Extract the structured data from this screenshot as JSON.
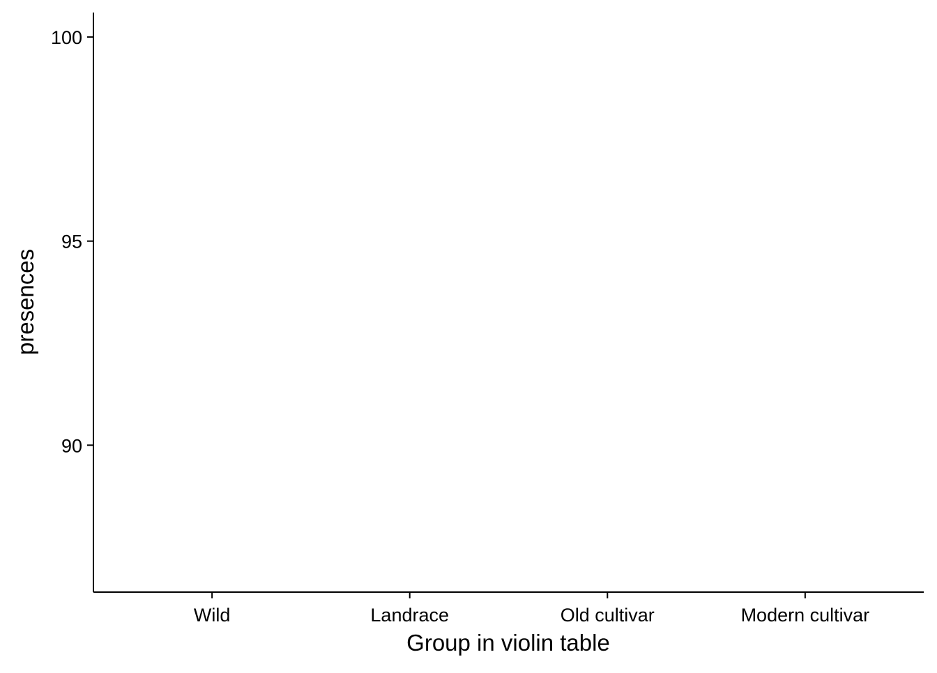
{
  "chart_data": {
    "type": "violin",
    "title": "",
    "xlabel": "Group in violin table",
    "ylabel": "presences",
    "categories": [
      "Wild",
      "Landrace",
      "Old cultivar",
      "Modern cultivar"
    ],
    "ylim": [
      86.4,
      100.6
    ],
    "yticks": [
      90,
      95,
      100
    ],
    "series": [],
    "grid": false,
    "legend": "none",
    "colors": {
      "axis": "#000000",
      "background": "#ffffff"
    }
  }
}
